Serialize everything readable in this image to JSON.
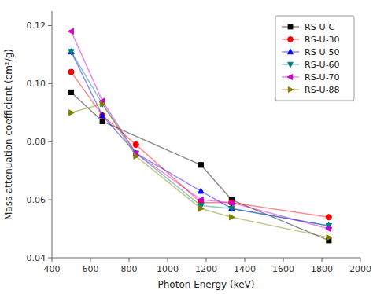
{
  "chart_data": {
    "type": "line",
    "xlabel": "Photon Energy (keV)",
    "ylabel": "Mass attenuation coefficient (cm²/g)",
    "series": [
      {
        "name": "RS-U-C",
        "color": "#000000",
        "marker": "square",
        "x": [
          500,
          662,
          1173,
          1332,
          1836
        ],
        "values": [
          0.097,
          0.087,
          0.072,
          0.06,
          0.046
        ]
      },
      {
        "name": "RS-U-30",
        "color": "#ff0000",
        "marker": "circle",
        "x": [
          500,
          662,
          836,
          1173,
          1332,
          1836
        ],
        "values": [
          0.104,
          0.089,
          0.079,
          0.059,
          0.059,
          0.054
        ]
      },
      {
        "name": "RS-U-50",
        "color": "#0000ff",
        "marker": "triangle-up",
        "x": [
          500,
          662,
          836,
          1173,
          1332,
          1836
        ],
        "values": [
          0.111,
          0.089,
          0.076,
          0.063,
          0.057,
          0.051
        ]
      },
      {
        "name": "RS-U-60",
        "color": "#008080",
        "marker": "triangle-down",
        "x": [
          500,
          662,
          836,
          1173,
          1332,
          1836
        ],
        "values": [
          0.111,
          0.093,
          0.076,
          0.058,
          0.057,
          0.051
        ]
      },
      {
        "name": "RS-U-70",
        "color": "#cc00cc",
        "marker": "triangle-left",
        "x": [
          500,
          662,
          836,
          1173,
          1332,
          1836
        ],
        "values": [
          0.118,
          0.094,
          0.076,
          0.06,
          0.059,
          0.05
        ]
      },
      {
        "name": "RS-U-88",
        "color": "#808000",
        "marker": "triangle-right",
        "x": [
          500,
          662,
          836,
          1173,
          1332,
          1836
        ],
        "values": [
          0.09,
          0.093,
          0.075,
          0.057,
          0.054,
          0.047
        ]
      }
    ],
    "xlim": [
      400,
      2000
    ],
    "ylim": [
      0.04,
      0.125
    ],
    "xticks": [
      400,
      600,
      800,
      1000,
      1200,
      1400,
      1600,
      1800,
      2000
    ],
    "yticks": [
      0.04,
      0.06,
      0.08,
      {
        "value": 0.1,
        "label": "0.10"
      },
      0.12
    ],
    "legend": "upper right",
    "grid": false
  }
}
